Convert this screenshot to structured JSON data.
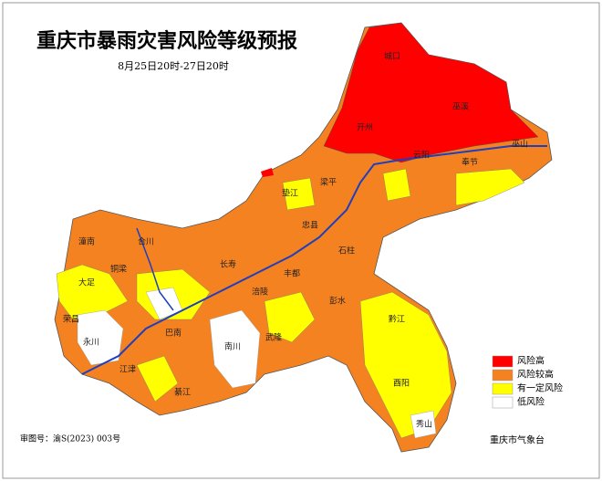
{
  "title": "重庆市暴雨灾害风险等级预报",
  "subtitle": "8月25日20时-27日20时",
  "legend": [
    {
      "label": "风险高",
      "color": "#ff0000"
    },
    {
      "label": "风险较高",
      "color": "#f58220"
    },
    {
      "label": "有一定风险",
      "color": "#ffff00"
    },
    {
      "label": "低风险",
      "color": "#ffffff"
    }
  ],
  "places": [
    "城口",
    "巫溪",
    "开州",
    "云阳",
    "奉节",
    "巫山",
    "梁平",
    "垫江",
    "忠县",
    "石柱",
    "丰都",
    "长寿",
    "涪陵",
    "武隆",
    "彭水",
    "黔江",
    "酉阳",
    "秀山",
    "南川",
    "綦江",
    "江津",
    "巴南",
    "永川",
    "潼南",
    "合川",
    "铜梁",
    "大足",
    "荣昌"
  ],
  "approval_number": "审图号：渝S(2023) 003号",
  "issuer": "重庆市气象台"
}
